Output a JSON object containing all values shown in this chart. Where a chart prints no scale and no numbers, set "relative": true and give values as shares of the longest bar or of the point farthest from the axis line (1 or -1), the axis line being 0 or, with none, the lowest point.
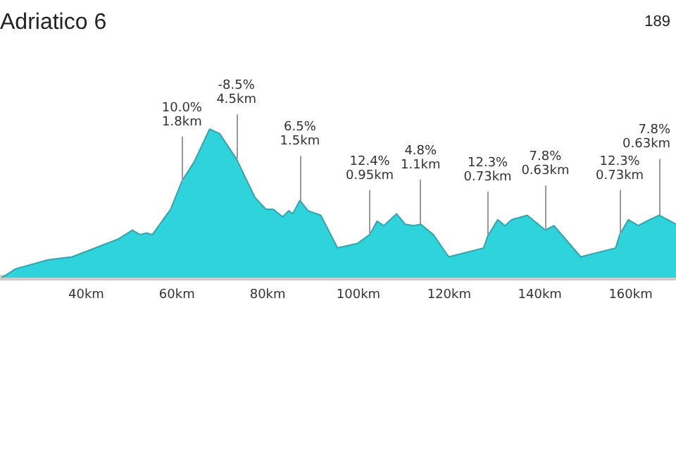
{
  "chart_data": {
    "type": "area",
    "title": "Adriatico 6",
    "relative": true,
    "color": "#2fd3dc",
    "x": [
      21.4,
      24.5,
      31.6,
      36.9,
      47.1,
      50.2,
      51.8,
      53.3,
      54.6,
      58.6,
      61.1,
      63.8,
      67.2,
      69.4,
      73.1,
      77.2,
      79.6,
      81.2,
      83.3,
      84.6,
      85.5,
      87.1,
      88.9,
      91.7,
      95.4,
      99.8,
      102.5,
      104.1,
      105.6,
      108.4,
      110.3,
      112.2,
      113.7,
      116.5,
      119.9,
      127.6,
      128.5,
      130.7,
      132.3,
      133.8,
      137.2,
      140.0,
      141.2,
      143.1,
      149.0,
      156.7,
      157.6,
      159.5,
      161.7,
      163.5,
      166.3,
      170.0
    ],
    "values": [
      0,
      0.06,
      0.12,
      0.14,
      0.26,
      0.32,
      0.29,
      0.3,
      0.29,
      0.46,
      0.65,
      0.78,
      1.0,
      0.97,
      0.8,
      0.54,
      0.46,
      0.46,
      0.41,
      0.45,
      0.43,
      0.52,
      0.45,
      0.42,
      0.2,
      0.23,
      0.29,
      0.38,
      0.35,
      0.43,
      0.36,
      0.35,
      0.36,
      0.29,
      0.14,
      0.2,
      0.28,
      0.39,
      0.35,
      0.39,
      0.42,
      0.35,
      0.32,
      0.35,
      0.14,
      0.2,
      0.29,
      0.39,
      0.35,
      0.38,
      0.42,
      0.36
    ],
    "xlim": [
      21,
      170
    ],
    "xticks": [
      {
        "value": 40,
        "label": "40km"
      },
      {
        "value": 60,
        "label": "60km"
      },
      {
        "value": 80,
        "label": "80km"
      },
      {
        "value": 100,
        "label": "100km"
      },
      {
        "value": 120,
        "label": "120km"
      },
      {
        "value": 140,
        "label": "140km"
      },
      {
        "value": 160,
        "label": "160km"
      }
    ],
    "grid": false,
    "annotations": [
      "189",
      {
        "text": "10.0%\n1.8km",
        "x": 61.1,
        "y": 0.65
      },
      {
        "text": "-8.5%\n4.5km",
        "x": 73.1,
        "y": 0.8
      },
      {
        "text": "6.5%\n1.5km",
        "x": 87.1,
        "y": 0.52
      },
      {
        "text": "12.4%\n0.95km",
        "x": 102.5,
        "y": 0.29
      },
      {
        "text": "4.8%\n1.1km",
        "x": 113.7,
        "y": 0.36
      },
      {
        "text": "12.3%\n0.73km",
        "x": 128.5,
        "y": 0.28
      },
      {
        "text": "7.8%\n0.63km",
        "x": 141.2,
        "y": 0.32
      },
      {
        "text": "12.3%\n0.73km",
        "x": 157.6,
        "y": 0.29
      },
      {
        "text": "7.8%\n0.63km",
        "x": 166.3,
        "y": 0.42
      }
    ]
  }
}
